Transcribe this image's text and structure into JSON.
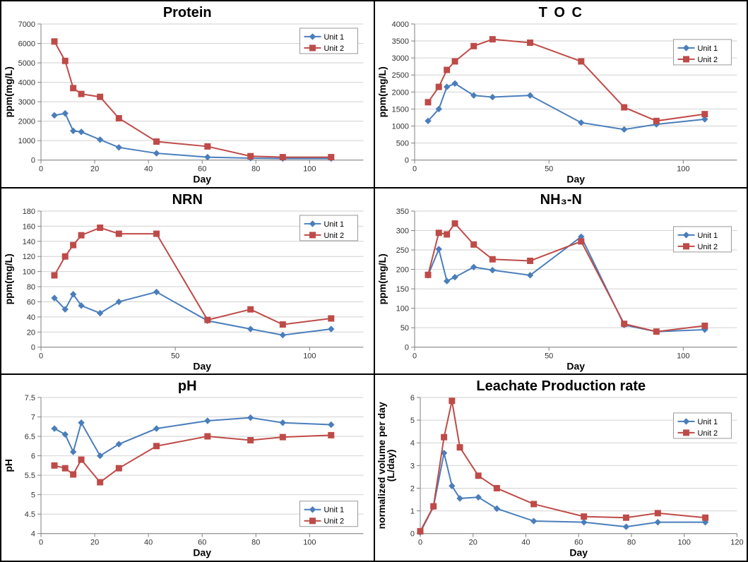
{
  "colors": {
    "unit1": "#4a7ebb",
    "unit2": "#be4b48",
    "grid": "#d2d2d2",
    "axis": "#808080",
    "text": "#000000"
  },
  "marker": {
    "unit1": "diamond",
    "unit2": "square",
    "size": 4
  },
  "line_width": 2,
  "font": {
    "title_size": 20,
    "axis_label_size": 14,
    "tick_size": 11,
    "legend_size": 11
  },
  "charts": [
    {
      "id": "protein",
      "title": "Protein",
      "title_letter_spacing": 0,
      "xlabel": "Day",
      "ylabel": "ppm(mg/L)",
      "xlim": [
        0,
        120
      ],
      "ylim": [
        0,
        7000
      ],
      "xticks": [
        0,
        20,
        40,
        60,
        80,
        100
      ],
      "yticks": [
        0,
        1000,
        2000,
        3000,
        4000,
        5000,
        6000,
        7000
      ],
      "legend_pos": "top-right",
      "series": [
        {
          "name": "Unit 1",
          "color_key": "unit1",
          "marker_key": "unit1",
          "x": [
            5,
            9,
            12,
            15,
            22,
            29,
            43,
            62,
            78,
            90,
            108
          ],
          "y": [
            2300,
            2400,
            1500,
            1450,
            1050,
            650,
            350,
            150,
            100,
            80,
            80
          ]
        },
        {
          "name": "Unit 2",
          "color_key": "unit2",
          "marker_key": "unit2",
          "x": [
            5,
            9,
            12,
            15,
            22,
            29,
            43,
            62,
            78,
            90,
            108
          ],
          "y": [
            6100,
            5100,
            3700,
            3400,
            3250,
            2150,
            950,
            700,
            200,
            150,
            150
          ]
        }
      ]
    },
    {
      "id": "toc",
      "title": "T O C",
      "title_letter_spacing": 2,
      "xlabel": "Day",
      "ylabel": "ppm(mg/L)",
      "xlim": [
        0,
        120
      ],
      "ylim": [
        0,
        4000
      ],
      "xticks": [
        0,
        50,
        100
      ],
      "yticks": [
        0,
        500,
        1000,
        1500,
        2000,
        2500,
        3000,
        3500,
        4000
      ],
      "legend_pos": "mid-right",
      "series": [
        {
          "name": "Unit 1",
          "color_key": "unit1",
          "marker_key": "unit1",
          "x": [
            5,
            9,
            12,
            15,
            22,
            29,
            43,
            62,
            78,
            90,
            108
          ],
          "y": [
            1150,
            1500,
            2150,
            2250,
            1900,
            1850,
            1900,
            1100,
            900,
            1050,
            1200
          ]
        },
        {
          "name": "Unit 2",
          "color_key": "unit2",
          "marker_key": "unit2",
          "x": [
            5,
            9,
            12,
            15,
            22,
            29,
            43,
            62,
            78,
            90,
            108
          ],
          "y": [
            1700,
            2150,
            2650,
            2900,
            3350,
            3550,
            3450,
            2900,
            1550,
            1150,
            1350
          ]
        }
      ]
    },
    {
      "id": "nrn",
      "title": "NRN",
      "title_letter_spacing": 0,
      "xlabel": "Day",
      "ylabel": "ppm(mg/L)",
      "xlim": [
        0,
        120
      ],
      "ylim": [
        0,
        180
      ],
      "xticks": [
        0,
        50,
        100
      ],
      "yticks": [
        0,
        20,
        40,
        60,
        80,
        100,
        120,
        140,
        160,
        180
      ],
      "legend_pos": "top-right",
      "series": [
        {
          "name": "Unit 1",
          "color_key": "unit1",
          "marker_key": "unit1",
          "x": [
            5,
            9,
            12,
            15,
            22,
            29,
            43,
            62,
            78,
            90,
            108
          ],
          "y": [
            65,
            50,
            70,
            55,
            45,
            60,
            73,
            35,
            24,
            16,
            24
          ]
        },
        {
          "name": "Unit 2",
          "color_key": "unit2",
          "marker_key": "unit2",
          "x": [
            5,
            9,
            12,
            15,
            22,
            29,
            43,
            62,
            78,
            90,
            108
          ],
          "y": [
            95,
            120,
            135,
            148,
            158,
            150,
            150,
            36,
            50,
            30,
            38
          ]
        }
      ]
    },
    {
      "id": "nh3n",
      "title": "NH₃-N",
      "title_letter_spacing": 0,
      "xlabel": "Day",
      "ylabel": "ppm(mg/L)",
      "xlim": [
        0,
        120
      ],
      "ylim": [
        0,
        350
      ],
      "xticks": [
        0,
        50,
        100
      ],
      "yticks": [
        0,
        50,
        100,
        150,
        200,
        250,
        300,
        350
      ],
      "legend_pos": "mid-right",
      "series": [
        {
          "name": "Unit 1",
          "color_key": "unit1",
          "marker_key": "unit1",
          "x": [
            5,
            9,
            12,
            15,
            22,
            29,
            43,
            62,
            78,
            90,
            108
          ],
          "y": [
            185,
            252,
            170,
            180,
            206,
            198,
            185,
            284,
            57,
            40,
            45
          ]
        },
        {
          "name": "Unit 2",
          "color_key": "unit2",
          "marker_key": "unit2",
          "x": [
            5,
            9,
            12,
            15,
            22,
            29,
            43,
            62,
            78,
            90,
            108
          ],
          "y": [
            186,
            294,
            290,
            318,
            264,
            226,
            222,
            272,
            60,
            40,
            55
          ]
        }
      ]
    },
    {
      "id": "ph",
      "title": "pH",
      "title_letter_spacing": 0,
      "xlabel": "Day",
      "ylabel": "pH",
      "xlim": [
        0,
        120
      ],
      "ylim": [
        4,
        7.5
      ],
      "xticks": [
        0,
        20,
        40,
        60,
        80,
        100
      ],
      "yticks": [
        4,
        4.5,
        5,
        5.5,
        6,
        6.5,
        7,
        7.5
      ],
      "legend_pos": "bottom-right",
      "series": [
        {
          "name": "Unit 1",
          "color_key": "unit1",
          "marker_key": "unit1",
          "x": [
            5,
            9,
            12,
            15,
            22,
            29,
            43,
            62,
            78,
            90,
            108
          ],
          "y": [
            6.7,
            6.55,
            6.1,
            6.85,
            6.0,
            6.3,
            6.7,
            6.9,
            6.98,
            6.85,
            6.8
          ]
        },
        {
          "name": "Unit 2",
          "color_key": "unit2",
          "marker_key": "unit2",
          "x": [
            5,
            9,
            12,
            15,
            22,
            29,
            43,
            62,
            78,
            90,
            108
          ],
          "y": [
            5.75,
            5.68,
            5.52,
            5.9,
            5.32,
            5.68,
            6.25,
            6.5,
            6.4,
            6.48,
            6.53
          ]
        }
      ]
    },
    {
      "id": "leachate",
      "title": "Leachate Production rate",
      "title_letter_spacing": 0,
      "xlabel": "Day",
      "ylabel": "normalized volume per day (L/day)",
      "xlim": [
        0,
        120
      ],
      "ylim": [
        0,
        6
      ],
      "xticks": [
        0,
        20,
        40,
        60,
        80,
        100,
        120
      ],
      "yticks": [
        0,
        1,
        2,
        3,
        4,
        5,
        6
      ],
      "legend_pos": "mid-right",
      "series": [
        {
          "name": "Unit 1",
          "color_key": "unit1",
          "marker_key": "unit1",
          "x": [
            0,
            5,
            9,
            12,
            15,
            22,
            29,
            43,
            62,
            78,
            90,
            108
          ],
          "y": [
            0.05,
            1.18,
            3.55,
            2.1,
            1.55,
            1.6,
            1.1,
            0.55,
            0.5,
            0.3,
            0.5,
            0.5
          ]
        },
        {
          "name": "Unit 2",
          "color_key": "unit2",
          "marker_key": "unit2",
          "x": [
            0,
            5,
            9,
            12,
            15,
            22,
            29,
            43,
            62,
            78,
            90,
            108
          ],
          "y": [
            0.1,
            1.2,
            4.25,
            5.85,
            3.8,
            2.55,
            2.0,
            1.3,
            0.75,
            0.7,
            0.9,
            0.7
          ]
        }
      ]
    }
  ]
}
